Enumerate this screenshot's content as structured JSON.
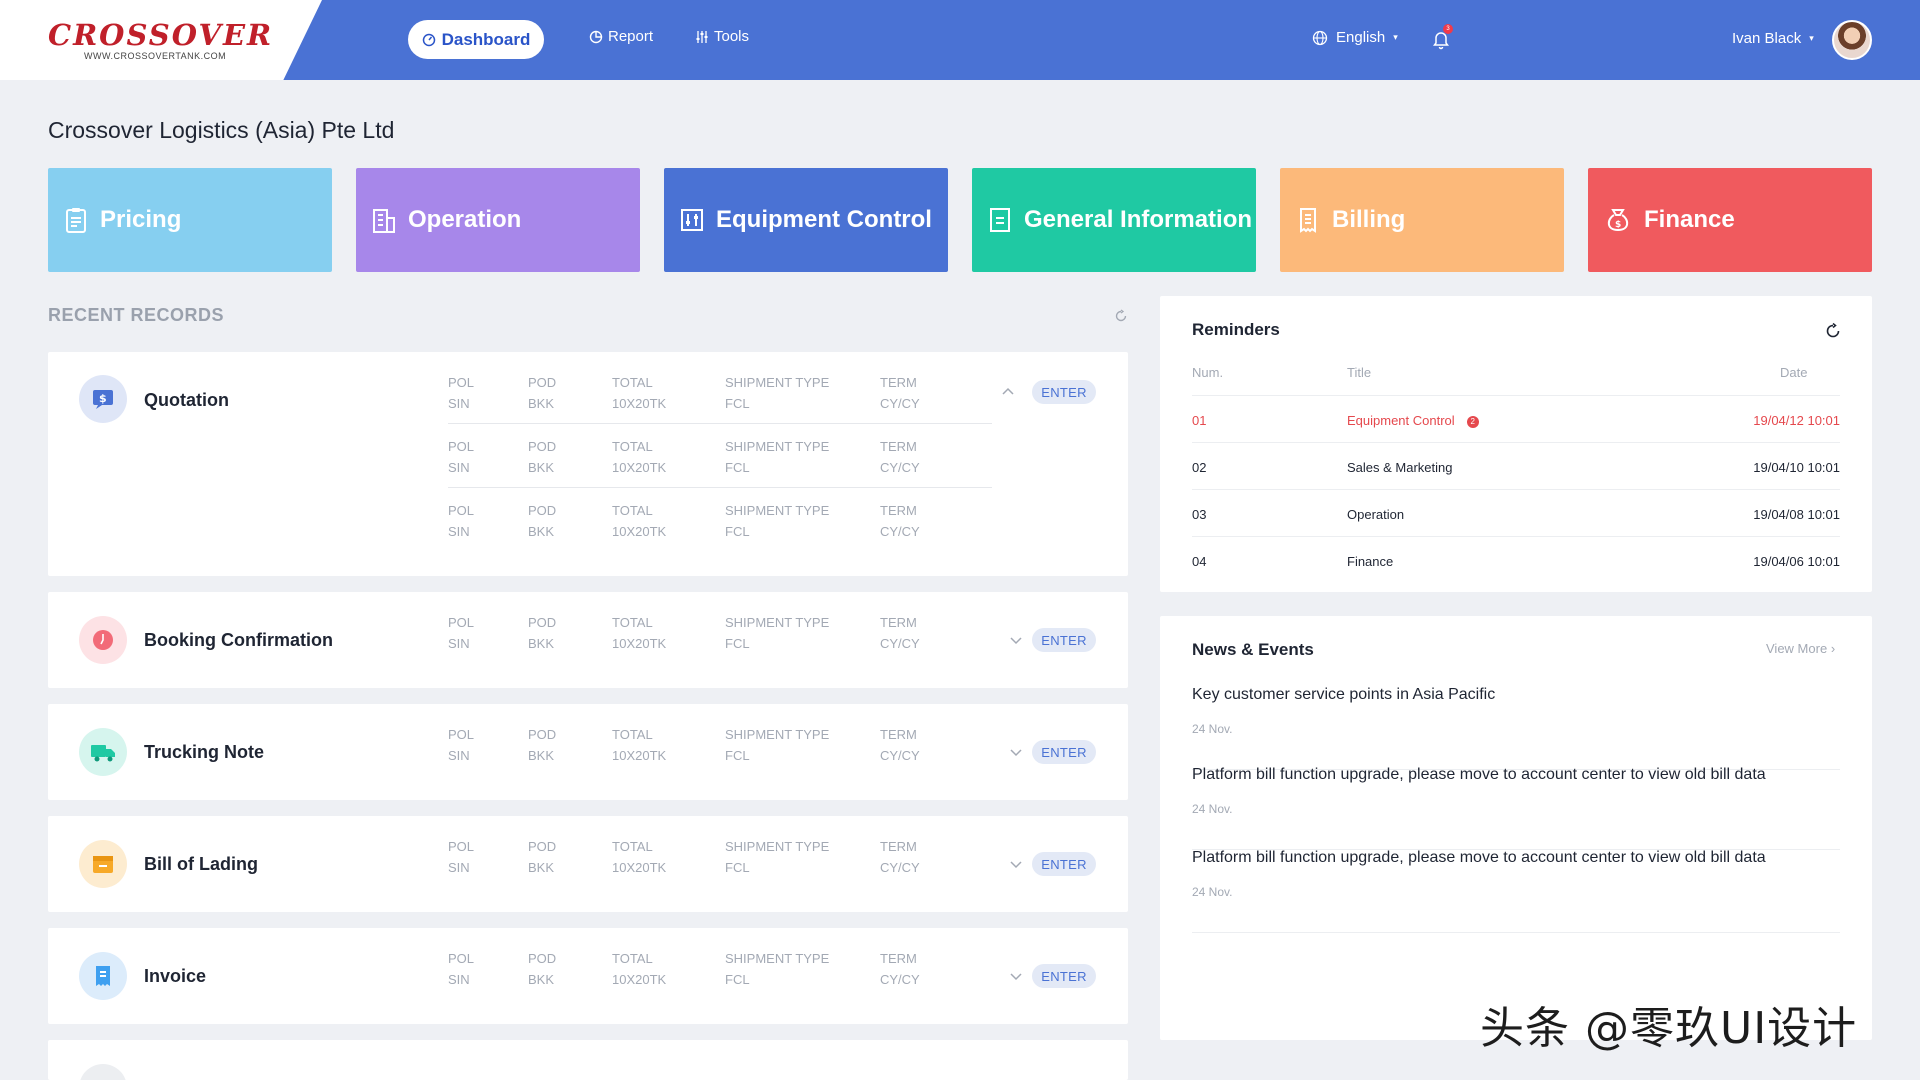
{
  "header": {
    "logo": "CROSSOVER",
    "logo_url": "WWW.CROSSOVERTANK.COM",
    "nav_dashboard": "Dashboard",
    "nav_report": "Report",
    "nav_tools": "Tools",
    "language": "English",
    "notification_count": "3",
    "user_name": "Ivan Black"
  },
  "company": "Crossover Logistics (Asia) Pte Ltd",
  "tiles": [
    {
      "label": "Pricing",
      "color": "#86cff0"
    },
    {
      "label": "Operation",
      "color": "#a787ea"
    },
    {
      "label": "Equipment Control",
      "color": "#4a72d4"
    },
    {
      "label": "General Information",
      "color": "#1fc9a3"
    },
    {
      "label": "Billing",
      "color": "#fcb97a"
    },
    {
      "label": "Finance",
      "color": "#f05a5e"
    }
  ],
  "recent": {
    "title": "RECENT RECORDS",
    "enter_label": "ENTER",
    "columns": {
      "pol_label": "POL",
      "pol_value": "SIN",
      "pod_label": "POD",
      "pod_value": "BKK",
      "total_label": "TOTAL",
      "total_value": "10X20TK",
      "shipment_label": "SHIPMENT TYPE",
      "shipment_value": "FCL",
      "term_label": "TERM",
      "term_value": "CY/CY"
    },
    "records": [
      {
        "title": "Quotation",
        "icon": "quotation-icon",
        "color": "#4a72d4"
      },
      {
        "title": "Booking Confirmation",
        "icon": "clock-icon",
        "color": "#f26b78"
      },
      {
        "title": "Trucking Note",
        "icon": "truck-icon",
        "color": "#1fc9a3"
      },
      {
        "title": "Bill of Lading",
        "icon": "box-icon",
        "color": "#f7a928"
      },
      {
        "title": "Invoice",
        "icon": "invoice-icon",
        "color": "#3fa0f0"
      }
    ]
  },
  "reminders": {
    "title": "Reminders",
    "col_num": "Num.",
    "col_title": "Title",
    "col_date": "Date",
    "rows": [
      {
        "num": "01",
        "title": "Equipment Control",
        "badge": "2",
        "date": "19/04/12 10:01"
      },
      {
        "num": "02",
        "title": "Sales & Marketing",
        "date": "19/04/10 10:01"
      },
      {
        "num": "03",
        "title": "Operation",
        "date": "19/04/08 10:01"
      },
      {
        "num": "04",
        "title": "Finance",
        "date": "19/04/06 10:01"
      }
    ]
  },
  "news": {
    "title": "News & Events",
    "view_more": "View More",
    "items": [
      {
        "text": "Key customer service points in Asia Pacific",
        "date": "24 Nov."
      },
      {
        "text": "Platform bill function upgrade, please move to account center to view old bill data",
        "date": "24 Nov."
      },
      {
        "text": "Platform bill function upgrade, please move to account center to view old bill data",
        "date": "24 Nov."
      }
    ]
  },
  "watermark": "头条 @零玖UI设计"
}
